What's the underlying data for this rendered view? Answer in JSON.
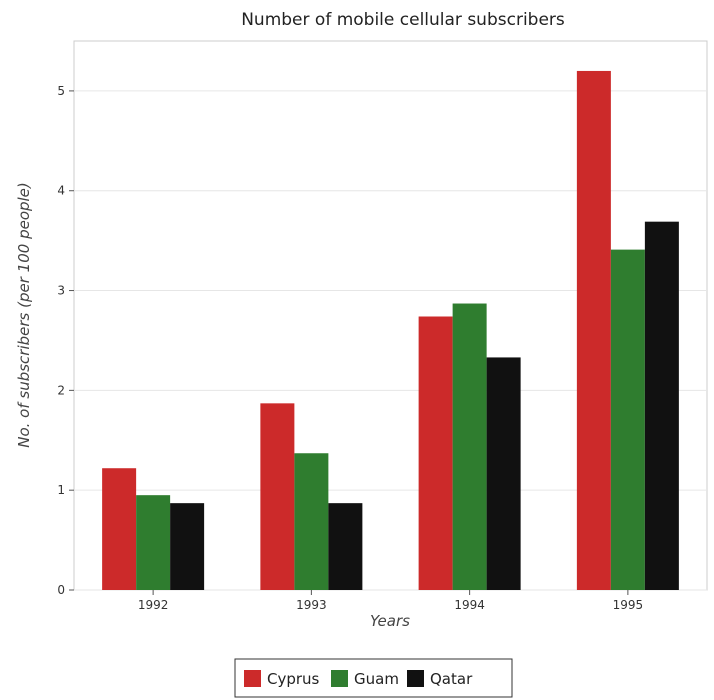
{
  "chart_data": {
    "type": "bar",
    "title": "Number of mobile cellular subscribers",
    "xlabel": "Years",
    "ylabel": "No. of subscribers (per 100 people)",
    "categories": [
      "1992",
      "1993",
      "1994",
      "1995"
    ],
    "ylim": [
      0,
      5.5
    ],
    "yticks": [
      "0",
      "1",
      "2",
      "3",
      "4",
      "5"
    ],
    "grid": true,
    "legend_position": "bottom-center",
    "series": [
      {
        "name": "Cyprus",
        "color": "#cc2a2a",
        "values": [
          1.22,
          1.87,
          2.74,
          5.2
        ]
      },
      {
        "name": "Guam",
        "color": "#2f7d2f",
        "values": [
          0.95,
          1.37,
          2.87,
          3.41
        ]
      },
      {
        "name": "Qatar",
        "color": "#111111",
        "values": [
          0.87,
          0.87,
          2.33,
          3.69
        ]
      }
    ]
  }
}
